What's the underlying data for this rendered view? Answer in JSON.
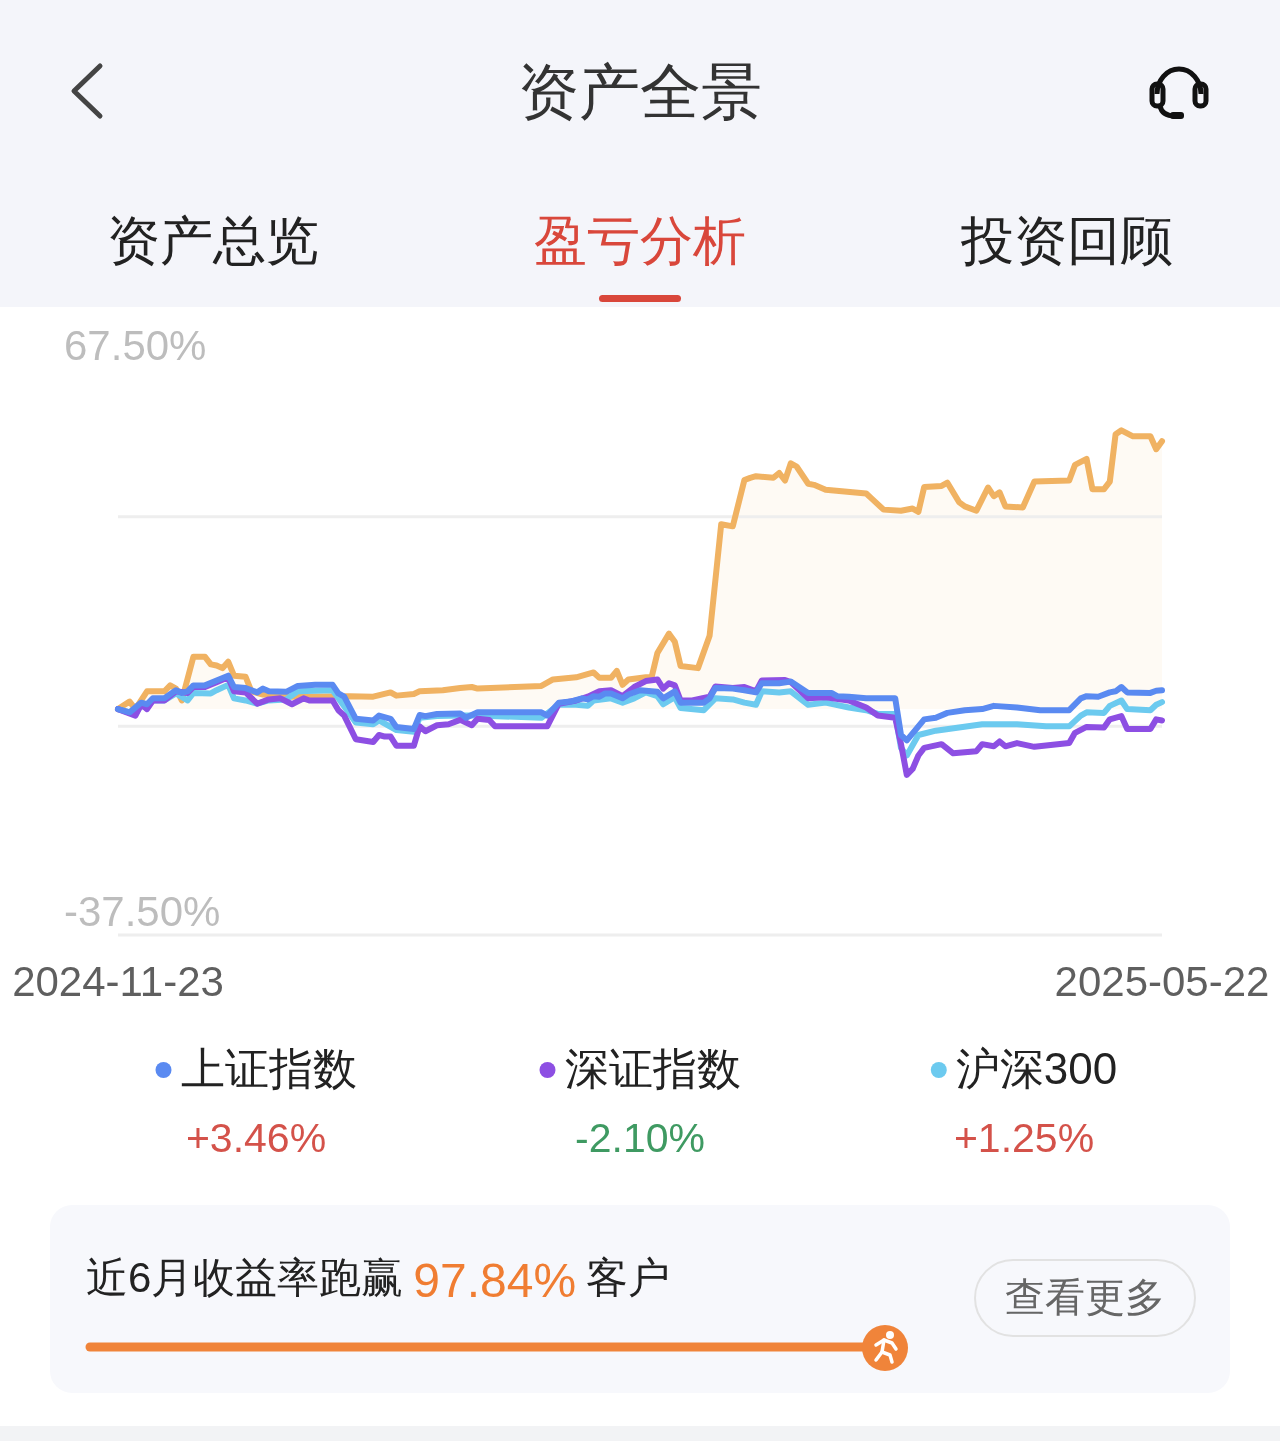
{
  "chart_data": {
    "type": "line",
    "title": "资产全景",
    "xlim": [
      "2024-11-23",
      "2025-05-22"
    ],
    "xticks": [
      "2024-11-23",
      "2025-05-22"
    ],
    "ylim": [
      -41.9,
      74.4
    ],
    "yticks": [
      {
        "value": 67.5,
        "label": "67.50%"
      },
      {
        "value": 35.7,
        "label": null
      },
      {
        "value": -3.2,
        "label": null
      },
      {
        "value": -37.5,
        "label": "-37.50%"
      }
    ],
    "grid": "y",
    "legend": "bottom",
    "series": [
      {
        "type": "area",
        "color": "#f0b262",
        "x": [
          "2024-11-23",
          "2024-11-25",
          "2024-11-26",
          "2024-11-28",
          "2024-12-01",
          "2024-12-02",
          "2024-12-03",
          "2024-12-04",
          "2024-12-06",
          "2024-12-08",
          "2024-12-09",
          "2024-12-10",
          "2024-12-11",
          "2024-12-12",
          "2024-12-13",
          "2024-12-15",
          "2024-12-16",
          "2024-12-18",
          "2024-12-22",
          "2024-12-23",
          "2025-01-02",
          "2025-01-06",
          "2025-01-09",
          "2025-01-10",
          "2025-01-13",
          "2025-01-14",
          "2025-01-18",
          "2025-01-21",
          "2025-01-23",
          "2025-01-24",
          "2025-02-04",
          "2025-02-06",
          "2025-02-10",
          "2025-02-13",
          "2025-02-14",
          "2025-02-16",
          "2025-02-17",
          "2025-02-18",
          "2025-02-19",
          "2025-02-22",
          "2025-02-23",
          "2025-02-24",
          "2025-02-26",
          "2025-02-27",
          "2025-02-28",
          "2025-03-03",
          "2025-03-05",
          "2025-03-07",
          "2025-03-09",
          "2025-03-11",
          "2025-03-12",
          "2025-03-13",
          "2025-03-16",
          "2025-03-17",
          "2025-03-18",
          "2025-03-19",
          "2025-03-20",
          "2025-03-22",
          "2025-03-23",
          "2025-03-25",
          "2025-04-01",
          "2025-04-02",
          "2025-04-04",
          "2025-04-07",
          "2025-04-09",
          "2025-04-10",
          "2025-04-11",
          "2025-04-14",
          "2025-04-15",
          "2025-04-17",
          "2025-04-18",
          "2025-04-20",
          "2025-04-22",
          "2025-04-23",
          "2025-04-24",
          "2025-04-25",
          "2025-04-28",
          "2025-04-30",
          "2025-05-06",
          "2025-05-07",
          "2025-05-09",
          "2025-05-10",
          "2025-05-12",
          "2025-05-13",
          "2025-05-14",
          "2025-05-15",
          "2025-05-17",
          "2025-05-20",
          "2025-05-21",
          "2025-05-22"
        ],
        "values": [
          0,
          1.4,
          0,
          3.3,
          3.3,
          4.4,
          3.8,
          1.6,
          9.7,
          9.7,
          8.3,
          8.1,
          7.6,
          8.8,
          6.2,
          6.0,
          3.3,
          2.7,
          2.4,
          2.3,
          2.4,
          2.3,
          3.1,
          2.5,
          2.8,
          3.3,
          3.5,
          3.9,
          4.1,
          3.8,
          4.3,
          5.5,
          5.9,
          6.8,
          5.8,
          5.8,
          7.1,
          4.5,
          5.5,
          5.9,
          5.9,
          10.4,
          14.0,
          12.5,
          8.0,
          7.6,
          13.6,
          34.3,
          33.9,
          42.5,
          42.9,
          43.2,
          42.9,
          43.8,
          42.4,
          45.6,
          45.0,
          41.8,
          41.6,
          40.7,
          40.0,
          39.0,
          37.0,
          36.8,
          37.2,
          36.6,
          41.2,
          41.4,
          42.0,
          38.4,
          37.6,
          36.8,
          41.1,
          39.5,
          40.2,
          37.6,
          37.4,
          42.2,
          42.4,
          45.3,
          46.4,
          40.8,
          40.8,
          42.2,
          51.0,
          51.7,
          50.6,
          50.6,
          48.2,
          49.7
        ]
      },
      {
        "name": "上证指数",
        "color": "#5a8af1",
        "x": [
          "2024-11-23",
          "2024-11-25",
          "2024-11-27",
          "2024-11-28",
          "2024-11-29",
          "2024-12-01",
          "2024-12-03",
          "2024-12-04",
          "2024-12-05",
          "2024-12-06",
          "2024-12-08",
          "2024-12-10",
          "2024-12-12",
          "2024-12-13",
          "2024-12-15",
          "2024-12-17",
          "2024-12-18",
          "2024-12-19",
          "2024-12-22",
          "2024-12-24",
          "2024-12-27",
          "2024-12-30",
          "2024-12-31",
          "2025-01-01",
          "2025-01-03",
          "2025-01-06",
          "2025-01-07",
          "2025-01-09",
          "2025-01-10",
          "2025-01-13",
          "2025-01-14",
          "2025-01-15",
          "2025-01-17",
          "2025-01-21",
          "2025-01-22",
          "2025-01-24",
          "2025-02-04",
          "2025-02-05",
          "2025-02-07",
          "2025-02-09",
          "2025-02-11",
          "2025-02-12",
          "2025-02-13",
          "2025-02-14",
          "2025-02-15",
          "2025-02-16",
          "2025-02-18",
          "2025-02-19",
          "2025-02-21",
          "2025-02-24",
          "2025-02-25",
          "2025-02-27",
          "2025-02-28",
          "2025-03-04",
          "2025-03-05",
          "2025-03-06",
          "2025-03-09",
          "2025-03-11",
          "2025-03-13",
          "2025-03-14",
          "2025-03-17",
          "2025-03-19",
          "2025-03-22",
          "2025-03-26",
          "2025-03-27",
          "2025-03-29",
          "2025-04-01",
          "2025-04-06",
          "2025-04-07",
          "2025-04-08",
          "2025-04-11",
          "2025-04-13",
          "2025-04-15",
          "2025-04-18",
          "2025-04-21",
          "2025-04-23",
          "2025-04-27",
          "2025-05-01",
          "2025-05-06",
          "2025-05-08",
          "2025-05-09",
          "2025-05-11",
          "2025-05-13",
          "2025-05-14",
          "2025-05-15",
          "2025-05-16",
          "2025-05-20",
          "2025-05-21",
          "2025-05-22"
        ],
        "values": [
          0.0,
          -0.6,
          1.2,
          0.9,
          2.0,
          2.0,
          3.5,
          3.0,
          3.3,
          4.4,
          4.4,
          5.3,
          6.2,
          4.1,
          3.9,
          3.1,
          3.8,
          3.3,
          3.2,
          4.3,
          4.5,
          4.5,
          2.9,
          2.3,
          -1.8,
          -2.1,
          -1.2,
          -1.8,
          -3.3,
          -3.7,
          -1.1,
          -1.3,
          -0.9,
          -0.8,
          -1.6,
          -0.6,
          -0.6,
          -1.2,
          1.2,
          1.4,
          2.0,
          1.8,
          2.4,
          2.3,
          2.9,
          2.9,
          2.0,
          2.7,
          3.5,
          3.2,
          2.0,
          3.3,
          1.2,
          1.2,
          2.0,
          3.9,
          3.8,
          3.5,
          3.1,
          4.8,
          4.8,
          5.1,
          3.0,
          3.0,
          2.4,
          2.3,
          2.0,
          2.0,
          -4.8,
          -5.8,
          -1.9,
          -1.6,
          -0.7,
          -0.2,
          0.0,
          0.6,
          0.3,
          -0.2,
          -0.2,
          2.0,
          2.4,
          2.3,
          3.1,
          3.3,
          4.1,
          3.1,
          3.0,
          3.4,
          3.5
        ]
      },
      {
        "name": "深证指数",
        "color": "#8d4fe3",
        "x": [
          "2024-11-23",
          "2024-11-26",
          "2024-11-27",
          "2024-11-28",
          "2024-11-29",
          "2024-12-01",
          "2024-12-03",
          "2024-12-05",
          "2024-12-06",
          "2024-12-08",
          "2024-12-10",
          "2024-12-12",
          "2024-12-13",
          "2024-12-15",
          "2024-12-17",
          "2024-12-19",
          "2024-12-21",
          "2024-12-23",
          "2024-12-25",
          "2024-12-26",
          "2024-12-30",
          "2024-12-31",
          "2025-01-01",
          "2025-01-03",
          "2025-01-06",
          "2025-01-07",
          "2025-01-08",
          "2025-01-09",
          "2025-01-10",
          "2025-01-13",
          "2025-01-14",
          "2025-01-15",
          "2025-01-17",
          "2025-01-19",
          "2025-01-21",
          "2025-01-23",
          "2025-01-24",
          "2025-01-26",
          "2025-01-27",
          "2025-02-05",
          "2025-02-07",
          "2025-02-10",
          "2025-02-12",
          "2025-02-14",
          "2025-02-16",
          "2025-02-18",
          "2025-02-20",
          "2025-02-22",
          "2025-02-24",
          "2025-02-25",
          "2025-02-26",
          "2025-02-27",
          "2025-02-28",
          "2025-03-02",
          "2025-03-05",
          "2025-03-06",
          "2025-03-09",
          "2025-03-11",
          "2025-03-13",
          "2025-03-14",
          "2025-03-18",
          "2025-03-19",
          "2025-03-22",
          "2025-03-25",
          "2025-03-29",
          "2025-04-01",
          "2025-04-03",
          "2025-04-06",
          "2025-04-07",
          "2025-04-08",
          "2025-04-09",
          "2025-04-10",
          "2025-04-11",
          "2025-04-14",
          "2025-04-16",
          "2025-04-20",
          "2025-04-21",
          "2025-04-23",
          "2025-04-24",
          "2025-04-25",
          "2025-04-27",
          "2025-04-30",
          "2025-05-06",
          "2025-05-07",
          "2025-05-09",
          "2025-05-12",
          "2025-05-13",
          "2025-05-15",
          "2025-05-16",
          "2025-05-20",
          "2025-05-21",
          "2025-05-22"
        ],
        "values": [
          0.0,
          -1.2,
          0.9,
          0.0,
          1.6,
          1.6,
          3.3,
          3.0,
          4.1,
          4.1,
          5.0,
          5.9,
          3.3,
          3.1,
          1.0,
          1.8,
          2.0,
          0.9,
          2.0,
          1.6,
          1.6,
          -0.2,
          -1.2,
          -5.6,
          -6.1,
          -4.8,
          -5.1,
          -5.1,
          -6.8,
          -6.8,
          -3.2,
          -4.1,
          -3.0,
          -2.8,
          -2.0,
          -3.0,
          -1.8,
          -2.0,
          -3.2,
          -3.2,
          1.0,
          1.6,
          2.3,
          3.3,
          3.5,
          2.4,
          4.1,
          5.2,
          5.5,
          3.8,
          4.8,
          4.4,
          1.6,
          1.6,
          2.3,
          4.2,
          3.9,
          4.1,
          3.3,
          5.3,
          5.4,
          5.0,
          2.0,
          2.2,
          1.6,
          0.3,
          -1.2,
          -1.6,
          -6.5,
          -12.2,
          -11.1,
          -8.6,
          -7.2,
          -6.5,
          -8.2,
          -7.8,
          -6.5,
          -6.9,
          -6.0,
          -6.9,
          -6.3,
          -7.0,
          -6.3,
          -4.4,
          -3.3,
          -3.4,
          -1.9,
          -1.3,
          -3.7,
          -3.7,
          -1.9,
          -2.1
        ]
      },
      {
        "name": "沪深300",
        "color": "#6ccaef",
        "x": [
          "2024-11-23",
          "2024-11-26",
          "2024-11-27",
          "2024-11-28",
          "2024-11-29",
          "2024-12-01",
          "2024-12-03",
          "2024-12-05",
          "2024-12-06",
          "2024-12-09",
          "2024-12-10",
          "2024-12-12",
          "2024-12-13",
          "2024-12-15",
          "2024-12-17",
          "2024-12-19",
          "2024-12-22",
          "2024-12-24",
          "2024-12-30",
          "2024-12-31",
          "2025-01-03",
          "2025-01-06",
          "2025-01-07",
          "2025-01-10",
          "2025-01-13",
          "2025-01-14",
          "2025-01-17",
          "2025-01-21",
          "2025-01-24",
          "2025-02-04",
          "2025-02-07",
          "2025-02-10",
          "2025-02-12",
          "2025-02-13",
          "2025-02-16",
          "2025-02-18",
          "2025-02-20",
          "2025-02-22",
          "2025-02-24",
          "2025-02-25",
          "2025-02-27",
          "2025-02-28",
          "2025-03-04",
          "2025-03-06",
          "2025-03-09",
          "2025-03-11",
          "2025-03-13",
          "2025-03-14",
          "2025-03-17",
          "2025-03-19",
          "2025-03-22",
          "2025-03-25",
          "2025-03-29",
          "2025-04-01",
          "2025-04-03",
          "2025-04-06",
          "2025-04-07",
          "2025-04-08",
          "2025-04-10",
          "2025-04-13",
          "2025-04-17",
          "2025-04-21",
          "2025-04-27",
          "2025-05-02",
          "2025-05-06",
          "2025-05-08",
          "2025-05-09",
          "2025-05-12",
          "2025-05-13",
          "2025-05-15",
          "2025-05-16",
          "2025-05-20",
          "2025-05-21",
          "2025-05-22"
        ],
        "values": [
          0.0,
          -0.9,
          0.8,
          0.2,
          1.6,
          1.6,
          2.9,
          1.6,
          3.0,
          2.9,
          3.5,
          4.5,
          2.0,
          1.6,
          1.0,
          1.6,
          1.8,
          3.3,
          3.5,
          2.0,
          -2.5,
          -2.8,
          -2.1,
          -3.9,
          -4.2,
          -1.6,
          -1.3,
          -1.2,
          -1.2,
          -1.6,
          0.8,
          0.8,
          0.6,
          1.6,
          2.0,
          1.2,
          2.0,
          3.1,
          2.4,
          0.9,
          2.2,
          0.2,
          -0.2,
          2.0,
          1.8,
          1.2,
          0.8,
          3.3,
          3.1,
          3.3,
          0.8,
          1.2,
          0.3,
          -0.2,
          -0.9,
          -0.9,
          -7.2,
          -8.6,
          -4.8,
          -4.0,
          -3.4,
          -2.8,
          -2.8,
          -3.2,
          -3.2,
          -1.2,
          -0.6,
          -0.7,
          0.6,
          1.6,
          0.0,
          -0.2,
          0.8,
          1.3
        ]
      }
    ],
    "annotations": [
      "资产总览",
      "盈亏分析",
      "投资回顾",
      "+3.46%",
      "-2.10%",
      "+1.25%",
      "近6月收益率跑赢",
      "97.84%",
      "客户",
      "查看更多"
    ]
  }
}
